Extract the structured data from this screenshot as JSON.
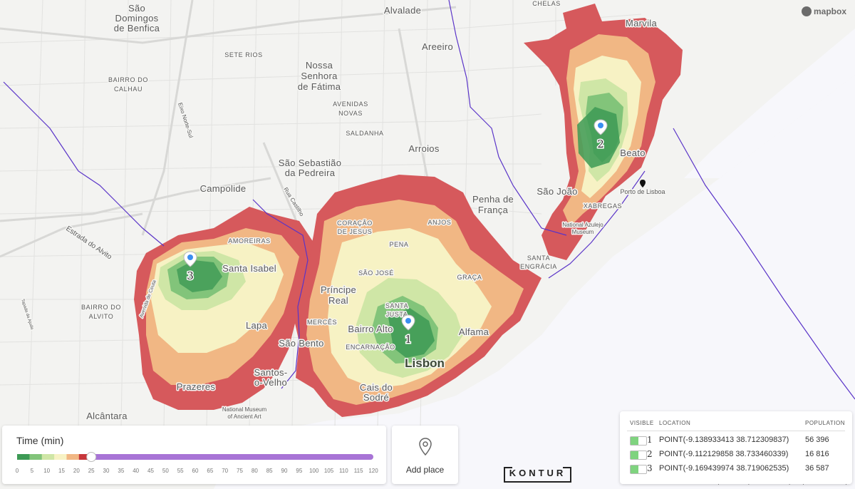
{
  "map": {
    "places": {
      "sao_domingos": [
        "São",
        "Domingos",
        "de Benfica"
      ],
      "alvalade": "Alvalade",
      "chelas": "CHELAS",
      "marvila": "Marvila",
      "sete_rios": "SETE RIOS",
      "areeiro": "Areeiro",
      "nossa_senhora": [
        "Nossa",
        "Senhora",
        "de Fátima"
      ],
      "bairro_calhau": [
        "BAIRRO DO",
        "CALHAU"
      ],
      "avenidas_novas": [
        "AVENIDAS",
        "NOVAS"
      ],
      "saldanha": "SALDANHA",
      "arroios": "Arroios",
      "beato": "Beato",
      "sao_sebastiao": [
        "São Sebastião",
        "da Pedreira"
      ],
      "campolide": "Campolide",
      "sao_joao": "São João",
      "porto_de_lisboa": "Porto de Lisboa",
      "penha_de_franca": [
        "Penha de",
        "França"
      ],
      "xabregas": "XABREGAS",
      "coracao_de_jesus": [
        "CORAÇÃO",
        "DE JESUS"
      ],
      "anjos": "ANJOS",
      "national_azulejo": [
        "National Azulejo",
        "Museum"
      ],
      "amoreiras": "AMOREIRAS",
      "santa_isabel": "Santa Isabel",
      "pena": "PENA",
      "santa_engracia": [
        "SANTA",
        "ENGRÁCIA"
      ],
      "sao_jose": "SÃO JOSÉ",
      "graca": "GRAÇA",
      "principe_real": [
        "Príncipe",
        "Real"
      ],
      "bairro_alvito": [
        "BAIRRO DO",
        "ALVITO"
      ],
      "santa_justa": [
        "SANTA",
        "JUSTA"
      ],
      "mercês": "MERCÊS",
      "lapa": "Lapa",
      "bairro_alto": "Bairro Alto",
      "alfama": "Alfama",
      "sao_bento": "São Bento",
      "encarnacao": "ENCARNAÇÃO",
      "lisbon": "Lisbon",
      "santos_o_velho": [
        "Santos-",
        "o-Velho"
      ],
      "prazeres": "Prazeres",
      "cais_do_sodre": [
        "Cais do",
        "Sodré"
      ],
      "national_museum": [
        "National Museum",
        "of Ancient Art"
      ],
      "alcantara": "Alcântara",
      "estrada_alvito": "Estrada do Alvito",
      "rua_castilho": "Rua Castilho",
      "avenida_ceuta": "Avenida de Ceuta",
      "eixo_norte_sul": "Eixo Norte-Sul",
      "tapada": "Tapada da Ajuda"
    },
    "markers": [
      {
        "label": "1"
      },
      {
        "label": "2"
      },
      {
        "label": "3"
      }
    ],
    "colors": {
      "zone_0_5": "#3d9a55",
      "zone_5_10": "#82c47a",
      "zone_10_15": "#cfe6a6",
      "zone_15_20": "#f7f2c4",
      "zone_20_25": "#f1b784",
      "zone_25_plus": "#d6595c",
      "admin_line": "#5a34c8",
      "marker": "#3b8ef0"
    }
  },
  "branding": {
    "mapbox": "mapbox",
    "kontur": "KONTUR",
    "attribution": "© Mapbox © OpenStreetMap Improve this map"
  },
  "time_panel": {
    "title": "Time (min)",
    "ticks": [
      "0",
      "5",
      "10",
      "15",
      "20",
      "25",
      "30",
      "35",
      "40",
      "45",
      "50",
      "55",
      "60",
      "65",
      "70",
      "75",
      "80",
      "85",
      "90",
      "95",
      "100",
      "105",
      "110",
      "115",
      "120"
    ],
    "selected_max_minutes": 25,
    "segment_colors": [
      "#3d9a55",
      "#82c47a",
      "#cfe6a6",
      "#f7f2c4",
      "#f1b784",
      "#c7373b"
    ],
    "track_color": "#a874d6"
  },
  "add_place": {
    "label": "Add place",
    "icon": "location-pin-icon"
  },
  "points_table": {
    "headers": {
      "visible": "VISIBLE",
      "location": "LOCATION",
      "population": "POPULATION"
    },
    "rows": [
      {
        "index": "1",
        "location": "POINT(-9.138933413 38.712309837)",
        "population": "56 396",
        "visible": true
      },
      {
        "index": "2",
        "location": "POINT(-9.112129858 38.733460339)",
        "population": "16 816",
        "visible": true
      },
      {
        "index": "3",
        "location": "POINT(-9.169439974 38.719062535)",
        "population": "36 587",
        "visible": true
      }
    ]
  }
}
